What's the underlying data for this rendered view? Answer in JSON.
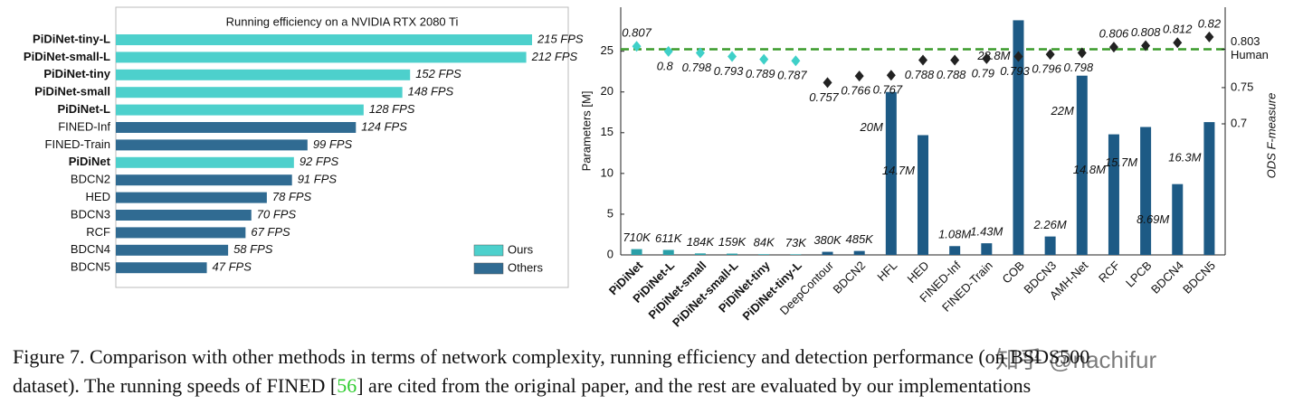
{
  "chart_data": [
    {
      "type": "bar",
      "orientation": "horizontal",
      "title": "Running efficiency on a NVIDIA RTX 2080 Ti",
      "categories": [
        "PiDiNet-tiny-L",
        "PiDiNet-small-L",
        "PiDiNet-tiny",
        "PiDiNet-small",
        "PiDiNet-L",
        "FINED-Inf",
        "FINED-Train",
        "PiDiNet",
        "BDCN2",
        "HED",
        "BDCN3",
        "RCF",
        "BDCN4",
        "BDCN5"
      ],
      "series": [
        {
          "name": "Ours",
          "color": "#4dd0cc",
          "values": [
            215,
            212,
            152,
            148,
            128,
            null,
            null,
            92,
            null,
            null,
            null,
            null,
            null,
            null
          ],
          "value_labels": [
            "215 FPS",
            "212 FPS",
            "152 FPS",
            "148 FPS",
            "128 FPS",
            null,
            null,
            "92 FPS",
            null,
            null,
            null,
            null,
            null,
            null
          ]
        },
        {
          "name": "Others",
          "color": "#306b92",
          "values": [
            null,
            null,
            null,
            null,
            null,
            124,
            99,
            null,
            91,
            78,
            70,
            67,
            58,
            47
          ],
          "value_labels": [
            null,
            null,
            null,
            null,
            null,
            "124 FPS",
            "99 FPS",
            null,
            "91 FPS",
            "78 FPS",
            "70 FPS",
            "67 FPS",
            "58 FPS",
            "47 FPS"
          ]
        }
      ],
      "legend": "lower right"
    },
    {
      "type": "bar",
      "ylabel": "Parameters [M]",
      "y2label": "ODS F-measure",
      "categories": [
        "PiDiNet",
        "PiDiNet-L",
        "PiDiNet-small",
        "PiDiNet-small-L",
        "PiDiNet-tiny",
        "PiDiNet-tiny-L",
        "DeepContour",
        "BDCN2",
        "HFL",
        "HED",
        "FINED-Inf",
        "FINED-Train",
        "COB",
        "BDCN3",
        "AMH-Net",
        "RCF",
        "LPCB",
        "BDCN4",
        "BDCN5"
      ],
      "series": [
        {
          "type": "bar",
          "colors": [
            "#2a9fa8",
            "#2a9fa8",
            "#2a9fa8",
            "#2a9fa8",
            "#2a9fa8",
            "#2a9fa8",
            "#1d5a85",
            "#1d5a85",
            "#1d5a85",
            "#1d5a85",
            "#1d5a85",
            "#1d5a85",
            "#1d5a85",
            "#1d5a85",
            "#1d5a85",
            "#1d5a85",
            "#1d5a85",
            "#1d5a85",
            "#1d5a85"
          ],
          "values": [
            0.71,
            0.611,
            0.184,
            0.159,
            0.084,
            0.073,
            0.38,
            0.485,
            20,
            14.7,
            1.08,
            1.43,
            28.8,
            2.26,
            22,
            14.8,
            15.7,
            8.69,
            16.3
          ],
          "value_labels": [
            "710K",
            "611K",
            "184K",
            "159K",
            "84K",
            "73K",
            "380K",
            "485K",
            "20M",
            "14.7M",
            "1.08M",
            "1.43M",
            "28.8M",
            "2.26M",
            "22M",
            "14.8M",
            "15.7M",
            "8.69M",
            "16.3M"
          ]
        },
        {
          "type": "scatter",
          "marker": "diamond",
          "axis": "y2",
          "colors": [
            "#3fd0c8",
            "#3fd0c8",
            "#3fd0c8",
            "#3fd0c8",
            "#3fd0c8",
            "#3fd0c8",
            "#222222",
            "#222222",
            "#222222",
            "#222222",
            "#222222",
            "#222222",
            "#222222",
            "#222222",
            "#222222",
            "#222222",
            "#222222",
            "#222222",
            "#222222"
          ],
          "values": [
            0.807,
            0.8,
            0.798,
            0.793,
            0.789,
            0.787,
            0.757,
            0.766,
            0.767,
            0.788,
            0.788,
            0.79,
            0.793,
            0.796,
            0.798,
            0.806,
            0.808,
            0.812,
            0.82
          ]
        }
      ],
      "ylim": [
        0,
        30.4
      ],
      "yticks": [
        0,
        5,
        10,
        15,
        20,
        25
      ],
      "y2lim": [
        0.519,
        0.861
      ],
      "y2ticks": [
        0.7,
        0.75,
        0.803
      ],
      "reference_lines": [
        {
          "value": 0.803,
          "label": "Human",
          "color": "#3a9a2a",
          "axis": "y2"
        }
      ]
    }
  ],
  "caption": {
    "line1": "Figure 7. Comparison with other methods in terms of network complexity, running efficiency and detection performance (on BSDS500",
    "line2_before": "dataset). The running speeds of FINED [",
    "citation": "56",
    "line2_after": "] are cited from the original paper, and the rest are evaluated by our implementations"
  },
  "watermark": "知乎 @nachifur"
}
